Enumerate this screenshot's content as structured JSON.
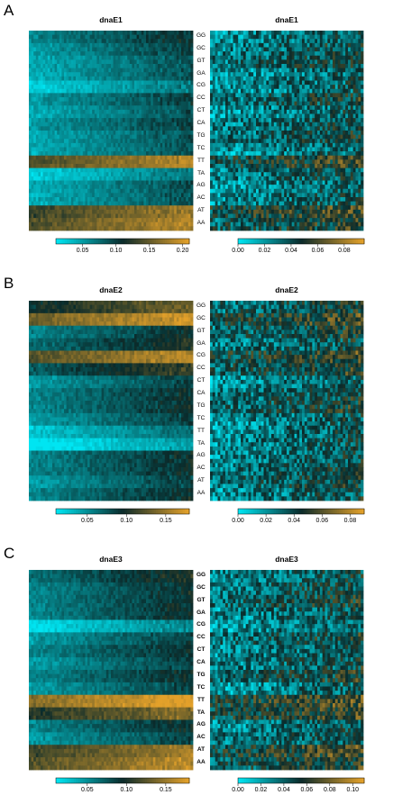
{
  "colors": {
    "low": "#00e5f2",
    "mid": "#0a2a2a",
    "high": "#e3a12a"
  },
  "row_labels": [
    "GG",
    "GC",
    "GT",
    "GA",
    "CG",
    "CC",
    "CT",
    "CA",
    "TG",
    "TC",
    "TT",
    "TA",
    "AG",
    "AC",
    "AT",
    "AA"
  ],
  "panels": [
    {
      "letter": "A",
      "left_title": "dnaE1",
      "right_title": "dnaE1",
      "left_ticks": [
        "0.05",
        "0.10",
        "0.15",
        "0.20"
      ],
      "right_ticks": [
        "0.00",
        "0.02",
        "0.04",
        "0.06",
        "0.08"
      ],
      "row_label_bold": false
    },
    {
      "letter": "B",
      "left_title": "dnaE2",
      "right_title": "dnaE2",
      "left_ticks": [
        "0.05",
        "0.10",
        "0.15"
      ],
      "right_ticks": [
        "0.00",
        "0.02",
        "0.04",
        "0.06",
        "0.08"
      ],
      "row_label_bold": false
    },
    {
      "letter": "C",
      "left_title": "dnaE3",
      "right_title": "dnaE3",
      "left_ticks": [
        "0.05",
        "0.10",
        "0.15"
      ],
      "right_ticks": [
        "0.00",
        "0.02",
        "0.04",
        "0.06",
        "0.08",
        "0.10"
      ],
      "row_label_bold": true
    }
  ],
  "chart_data": [
    {
      "type": "heatmap",
      "title": "dnaE1",
      "ylabels": [
        "GG",
        "GC",
        "GT",
        "GA",
        "CG",
        "CC",
        "CT",
        "CA",
        "TG",
        "TC",
        "TT",
        "TA",
        "AG",
        "AC",
        "AT",
        "AA"
      ],
      "colorbar_ticks": [
        0.05,
        0.1,
        0.15,
        0.2
      ],
      "range": [
        0.01,
        0.21
      ],
      "row_means": [
        0.08,
        0.07,
        0.06,
        0.06,
        0.04,
        0.07,
        0.06,
        0.07,
        0.06,
        0.06,
        0.16,
        0.04,
        0.06,
        0.06,
        0.15,
        0.16
      ]
    },
    {
      "type": "heatmap",
      "title": "dnaE1",
      "ylabels": [],
      "colorbar_ticks": [
        0.0,
        0.02,
        0.04,
        0.06,
        0.08
      ],
      "range": [
        0.0,
        0.095
      ]
    },
    {
      "type": "heatmap",
      "title": "dnaE2",
      "ylabels": [
        "GG",
        "GC",
        "GT",
        "GA",
        "CG",
        "CC",
        "CT",
        "CA",
        "TG",
        "TC",
        "TT",
        "TA",
        "AG",
        "AC",
        "AT",
        "AA"
      ],
      "colorbar_ticks": [
        0.05,
        0.1,
        0.15
      ],
      "range": [
        0.01,
        0.18
      ],
      "row_means": [
        0.11,
        0.15,
        0.07,
        0.08,
        0.14,
        0.09,
        0.06,
        0.07,
        0.07,
        0.06,
        0.04,
        0.02,
        0.07,
        0.07,
        0.06,
        0.07
      ]
    },
    {
      "type": "heatmap",
      "title": "dnaE2",
      "ylabels": [],
      "colorbar_ticks": [
        0.0,
        0.02,
        0.04,
        0.06,
        0.08
      ],
      "range": [
        0.0,
        0.09
      ]
    },
    {
      "type": "heatmap",
      "title": "dnaE3",
      "ylabels": [
        "GG",
        "GC",
        "GT",
        "GA",
        "CG",
        "CC",
        "CT",
        "CA",
        "TG",
        "TC",
        "TT",
        "TA",
        "AG",
        "AC",
        "AT",
        "AA"
      ],
      "colorbar_ticks": [
        0.05,
        0.1,
        0.15
      ],
      "range": [
        0.01,
        0.18
      ],
      "row_means": [
        0.08,
        0.07,
        0.07,
        0.07,
        0.03,
        0.06,
        0.07,
        0.06,
        0.07,
        0.06,
        0.16,
        0.12,
        0.07,
        0.06,
        0.13,
        0.14
      ]
    },
    {
      "type": "heatmap",
      "title": "dnaE3",
      "ylabels": [],
      "colorbar_ticks": [
        0.0,
        0.02,
        0.04,
        0.06,
        0.08,
        0.1
      ],
      "range": [
        0.0,
        0.11
      ]
    }
  ]
}
